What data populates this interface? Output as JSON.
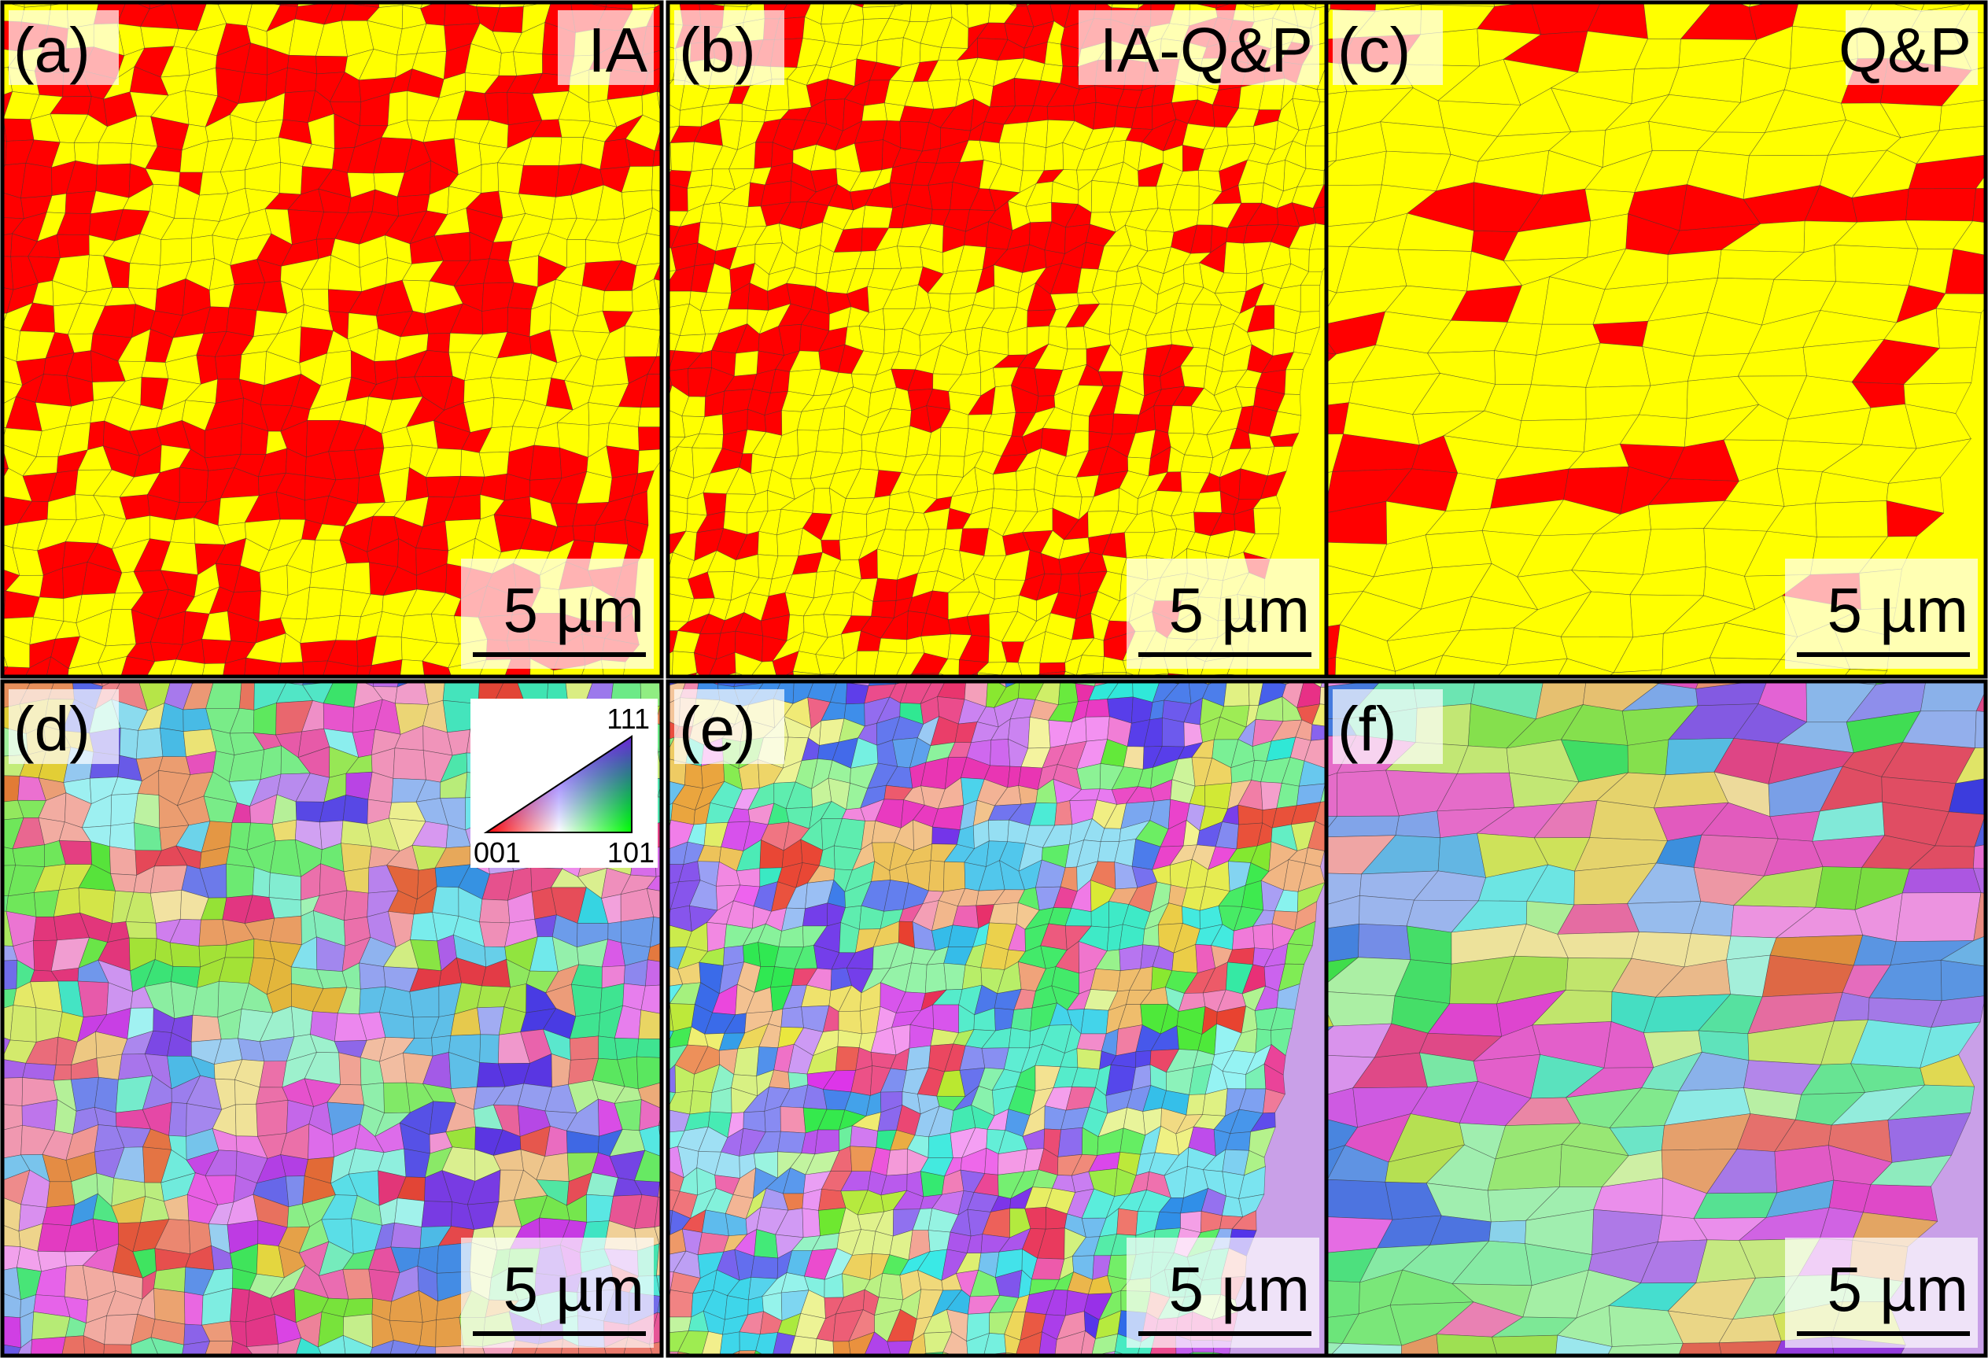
{
  "panels": [
    {
      "label": "(a)",
      "title": "IA",
      "scale_bar": "5 µm"
    },
    {
      "label": "(b)",
      "title": "IA-Q&P",
      "scale_bar": "5 µm"
    },
    {
      "label": "(c)",
      "title": "Q&P",
      "scale_bar": "5 µm"
    },
    {
      "label": "(d)",
      "scale_bar": "5 µm"
    },
    {
      "label": "(e)",
      "scale_bar": "5 µm"
    },
    {
      "label": "(f)",
      "scale_bar": "5 µm"
    }
  ],
  "ipf_key": {
    "top": "111",
    "left": "001",
    "right": "101"
  }
}
